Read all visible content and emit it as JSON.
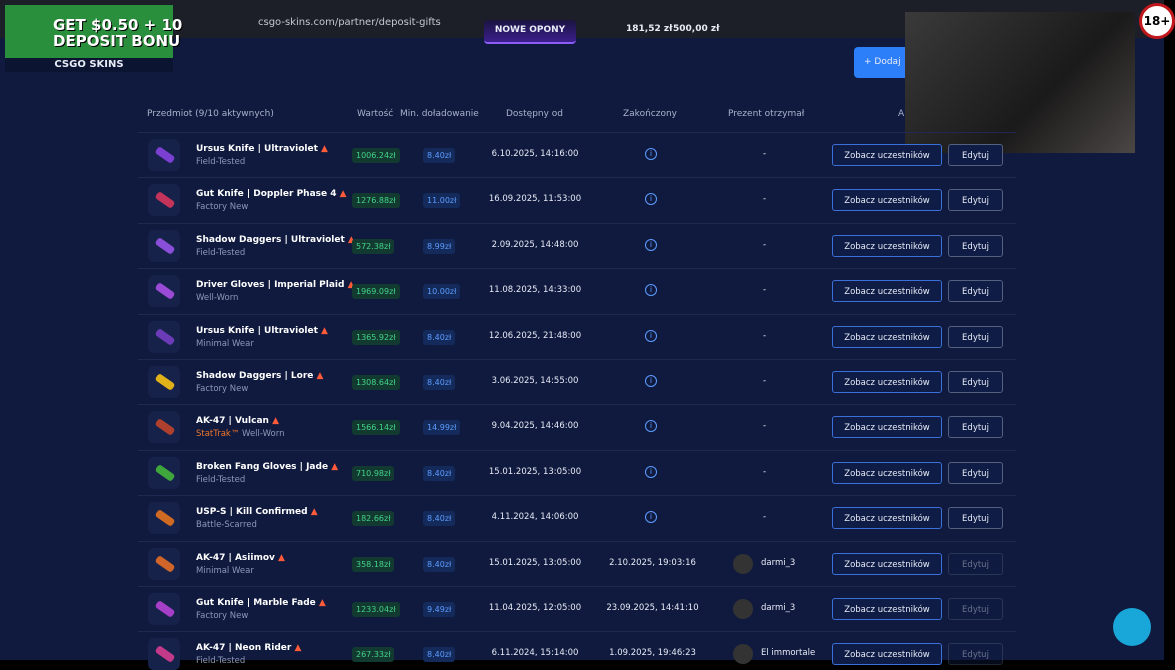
{
  "browser": {
    "url": "csgo-skins.com/partner/deposit-gifts",
    "promo": "NOWE OPONY",
    "balance_1": "181,52 zł",
    "balance_2": "500,00 zł"
  },
  "ad": {
    "headline_1": "GET $0.50 + 10",
    "headline_2": "DEPOSIT BONU",
    "brand": "CSGO SKINS"
  },
  "age_badge": "18+",
  "add_button": "+ Dodaj",
  "table": {
    "headers": [
      "Przedmiot (9/10 aktywnych)",
      "Wartość",
      "Min. doładowanie",
      "Dostępny od",
      "Zakończony",
      "Prezent otrzymał",
      "A"
    ],
    "actions": {
      "view": "Zobacz uczestników",
      "edit": "Edytuj"
    },
    "empty": "-",
    "rows": [
      {
        "name": "Ursus Knife | Ultraviolet",
        "exterior": "Field-Tested",
        "value": "1006.24zł",
        "min_deposit": "8.40zł",
        "available_from": "6.10.2025, 14:16:00"
      },
      {
        "name": "Gut Knife | Doppler Phase 4",
        "exterior": "Factory New",
        "value": "1276.88zł",
        "min_deposit": "11.00zł",
        "available_from": "16.09.2025, 11:53:00"
      },
      {
        "name": "Shadow Daggers | Ultraviolet",
        "exterior": "Field-Tested",
        "value": "572.38zł",
        "min_deposit": "8.99zł",
        "available_from": "2.09.2025, 14:48:00"
      },
      {
        "name": "Driver Gloves | Imperial Plaid",
        "exterior": "Well-Worn",
        "value": "1969.09zł",
        "min_deposit": "10.00zł",
        "available_from": "11.08.2025, 14:33:00"
      },
      {
        "name": "Ursus Knife | Ultraviolet",
        "exterior": "Minimal Wear",
        "value": "1365.92zł",
        "min_deposit": "8.40zł",
        "available_from": "12.06.2025, 21:48:00"
      },
      {
        "name": "Shadow Daggers | Lore",
        "exterior": "Factory New",
        "value": "1308.64zł",
        "min_deposit": "8.40zł",
        "available_from": "3.06.2025, 14:55:00"
      },
      {
        "name": "AK-47 | Vulcan",
        "stattrak": "StatTrak™",
        "exterior": "Well-Worn",
        "value": "1566.14zł",
        "min_deposit": "14.99zł",
        "available_from": "9.04.2025, 14:46:00"
      },
      {
        "name": "Broken Fang Gloves | Jade",
        "exterior": "Field-Tested",
        "value": "710.98zł",
        "min_deposit": "8.40zł",
        "available_from": "15.01.2025, 13:05:00"
      },
      {
        "name": "USP-S | Kill Confirmed",
        "exterior": "Battle-Scarred",
        "value": "182.66zł",
        "min_deposit": "8.40zł",
        "available_from": "4.11.2024, 14:06:00"
      },
      {
        "name": "AK-47 | Asiimov",
        "exterior": "Minimal Wear",
        "value": "358.18zł",
        "min_deposit": "8.40zł",
        "available_from": "15.01.2025, 13:05:00",
        "ended": "2.10.2025, 19:03:16",
        "receiver": "darmi_3"
      },
      {
        "name": "Gut Knife | Marble Fade",
        "exterior": "Factory New",
        "value": "1233.04zł",
        "min_deposit": "9.49zł",
        "available_from": "11.04.2025, 12:05:00",
        "ended": "23.09.2025, 14:41:10",
        "receiver": "darmi_3"
      },
      {
        "name": "AK-47 | Neon Rider",
        "exterior": "Field-Tested",
        "value": "267.33zł",
        "min_deposit": "8.40zł",
        "available_from": "6.11.2024, 15:14:00",
        "ended": "1.09.2025, 19:46:23",
        "receiver": "El immortale"
      }
    ]
  }
}
